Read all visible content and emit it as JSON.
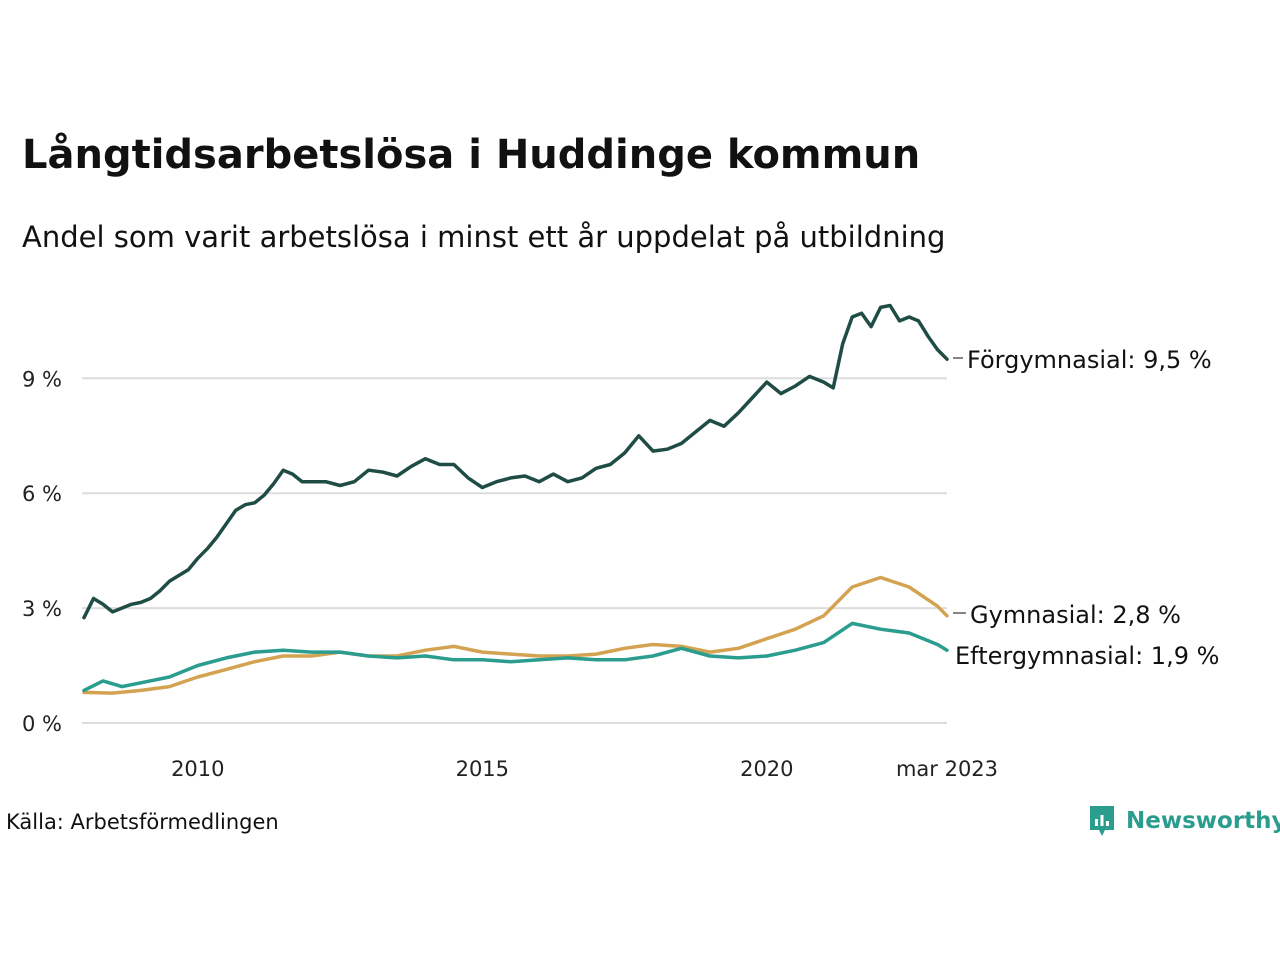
{
  "chart_data": {
    "type": "line",
    "title": "Långtidsarbetslösa i Huddinge kommun",
    "subtitle": "Andel som varit arbetslösa i minst ett år uppdelat på utbildning",
    "x_range": [
      "2008-01",
      "2023-03"
    ],
    "x_ticks": [
      {
        "date": "2010-01",
        "label": "2010"
      },
      {
        "date": "2015-01",
        "label": "2015"
      },
      {
        "date": "2020-01",
        "label": "2020"
      },
      {
        "date": "2023-03",
        "label": "mar 2023"
      }
    ],
    "y_ticks": [
      {
        "value": 0,
        "label": "0 %"
      },
      {
        "value": 3,
        "label": "3 %"
      },
      {
        "value": 6,
        "label": "6 %"
      },
      {
        "value": 9,
        "label": "9 %"
      }
    ],
    "ylim": [
      0,
      11
    ],
    "grid": true,
    "legend": "direct-labels-right",
    "series": [
      {
        "key": "forgymnasial",
        "end_label": "Förgymnasial: 9,5 %",
        "color": "#1f4d45",
        "points": [
          [
            "2008-01",
            2.75
          ],
          [
            "2008-03",
            3.25
          ],
          [
            "2008-05",
            3.1
          ],
          [
            "2008-07",
            2.9
          ],
          [
            "2008-09",
            3.0
          ],
          [
            "2008-11",
            3.1
          ],
          [
            "2009-01",
            3.15
          ],
          [
            "2009-03",
            3.25
          ],
          [
            "2009-05",
            3.45
          ],
          [
            "2009-07",
            3.7
          ],
          [
            "2009-09",
            3.85
          ],
          [
            "2009-11",
            4.0
          ],
          [
            "2010-01",
            4.3
          ],
          [
            "2010-03",
            4.55
          ],
          [
            "2010-05",
            4.85
          ],
          [
            "2010-07",
            5.2
          ],
          [
            "2010-09",
            5.55
          ],
          [
            "2010-11",
            5.7
          ],
          [
            "2011-01",
            5.75
          ],
          [
            "2011-03",
            5.95
          ],
          [
            "2011-05",
            6.25
          ],
          [
            "2011-07",
            6.6
          ],
          [
            "2011-09",
            6.5
          ],
          [
            "2011-11",
            6.3
          ],
          [
            "2012-01",
            6.3
          ],
          [
            "2012-04",
            6.3
          ],
          [
            "2012-07",
            6.2
          ],
          [
            "2012-10",
            6.3
          ],
          [
            "2013-01",
            6.6
          ],
          [
            "2013-04",
            6.55
          ],
          [
            "2013-07",
            6.45
          ],
          [
            "2013-10",
            6.7
          ],
          [
            "2014-01",
            6.9
          ],
          [
            "2014-04",
            6.75
          ],
          [
            "2014-07",
            6.75
          ],
          [
            "2014-10",
            6.4
          ],
          [
            "2015-01",
            6.15
          ],
          [
            "2015-04",
            6.3
          ],
          [
            "2015-07",
            6.4
          ],
          [
            "2015-10",
            6.45
          ],
          [
            "2016-01",
            6.3
          ],
          [
            "2016-04",
            6.5
          ],
          [
            "2016-07",
            6.3
          ],
          [
            "2016-10",
            6.4
          ],
          [
            "2017-01",
            6.65
          ],
          [
            "2017-04",
            6.75
          ],
          [
            "2017-07",
            7.05
          ],
          [
            "2017-10",
            7.5
          ],
          [
            "2018-01",
            7.1
          ],
          [
            "2018-04",
            7.15
          ],
          [
            "2018-07",
            7.3
          ],
          [
            "2018-10",
            7.6
          ],
          [
            "2019-01",
            7.9
          ],
          [
            "2019-04",
            7.75
          ],
          [
            "2019-07",
            8.1
          ],
          [
            "2019-10",
            8.5
          ],
          [
            "2020-01",
            8.9
          ],
          [
            "2020-04",
            8.6
          ],
          [
            "2020-07",
            8.8
          ],
          [
            "2020-10",
            9.05
          ],
          [
            "2021-01",
            8.9
          ],
          [
            "2021-03",
            8.75
          ],
          [
            "2021-05",
            9.9
          ],
          [
            "2021-07",
            10.6
          ],
          [
            "2021-09",
            10.7
          ],
          [
            "2021-11",
            10.35
          ],
          [
            "2022-01",
            10.85
          ],
          [
            "2022-03",
            10.9
          ],
          [
            "2022-05",
            10.5
          ],
          [
            "2022-07",
            10.6
          ],
          [
            "2022-09",
            10.5
          ],
          [
            "2022-11",
            10.1
          ],
          [
            "2023-01",
            9.75
          ],
          [
            "2023-03",
            9.5
          ]
        ]
      },
      {
        "key": "gymnasial",
        "end_label": "Gymnasial: 2,8 %",
        "color": "#d4a352",
        "points": [
          [
            "2008-01",
            0.8
          ],
          [
            "2008-07",
            0.78
          ],
          [
            "2009-01",
            0.85
          ],
          [
            "2009-07",
            0.95
          ],
          [
            "2010-01",
            1.2
          ],
          [
            "2010-07",
            1.4
          ],
          [
            "2011-01",
            1.6
          ],
          [
            "2011-07",
            1.75
          ],
          [
            "2012-01",
            1.75
          ],
          [
            "2012-07",
            1.85
          ],
          [
            "2013-01",
            1.75
          ],
          [
            "2013-07",
            1.75
          ],
          [
            "2014-01",
            1.9
          ],
          [
            "2014-07",
            2.0
          ],
          [
            "2015-01",
            1.85
          ],
          [
            "2015-07",
            1.8
          ],
          [
            "2016-01",
            1.75
          ],
          [
            "2016-07",
            1.75
          ],
          [
            "2017-01",
            1.8
          ],
          [
            "2017-07",
            1.95
          ],
          [
            "2018-01",
            2.05
          ],
          [
            "2018-07",
            2.0
          ],
          [
            "2019-01",
            1.85
          ],
          [
            "2019-07",
            1.95
          ],
          [
            "2020-01",
            2.2
          ],
          [
            "2020-07",
            2.45
          ],
          [
            "2021-01",
            2.8
          ],
          [
            "2021-07",
            3.55
          ],
          [
            "2022-01",
            3.8
          ],
          [
            "2022-07",
            3.55
          ],
          [
            "2023-01",
            3.05
          ],
          [
            "2023-03",
            2.8
          ]
        ]
      },
      {
        "key": "eftergymnasial",
        "end_label": "Eftergymnasial: 1,9 %",
        "color": "#2a9d8f",
        "points": [
          [
            "2008-01",
            0.85
          ],
          [
            "2008-05",
            1.1
          ],
          [
            "2008-09",
            0.95
          ],
          [
            "2009-01",
            1.05
          ],
          [
            "2009-07",
            1.2
          ],
          [
            "2010-01",
            1.5
          ],
          [
            "2010-07",
            1.7
          ],
          [
            "2011-01",
            1.85
          ],
          [
            "2011-07",
            1.9
          ],
          [
            "2012-01",
            1.85
          ],
          [
            "2012-07",
            1.85
          ],
          [
            "2013-01",
            1.75
          ],
          [
            "2013-07",
            1.7
          ],
          [
            "2014-01",
            1.75
          ],
          [
            "2014-07",
            1.65
          ],
          [
            "2015-01",
            1.65
          ],
          [
            "2015-07",
            1.6
          ],
          [
            "2016-01",
            1.65
          ],
          [
            "2016-07",
            1.7
          ],
          [
            "2017-01",
            1.65
          ],
          [
            "2017-07",
            1.65
          ],
          [
            "2018-01",
            1.75
          ],
          [
            "2018-07",
            1.95
          ],
          [
            "2019-01",
            1.75
          ],
          [
            "2019-07",
            1.7
          ],
          [
            "2020-01",
            1.75
          ],
          [
            "2020-07",
            1.9
          ],
          [
            "2021-01",
            2.1
          ],
          [
            "2021-07",
            2.6
          ],
          [
            "2022-01",
            2.45
          ],
          [
            "2022-07",
            2.35
          ],
          [
            "2023-01",
            2.05
          ],
          [
            "2023-03",
            1.9
          ]
        ]
      }
    ]
  },
  "footer": {
    "source": "Källa: Arbetsförmedlingen",
    "brand": "Newsworthy"
  },
  "colors": {
    "grid": "#dddddd",
    "brand": "#2a9d8f"
  }
}
